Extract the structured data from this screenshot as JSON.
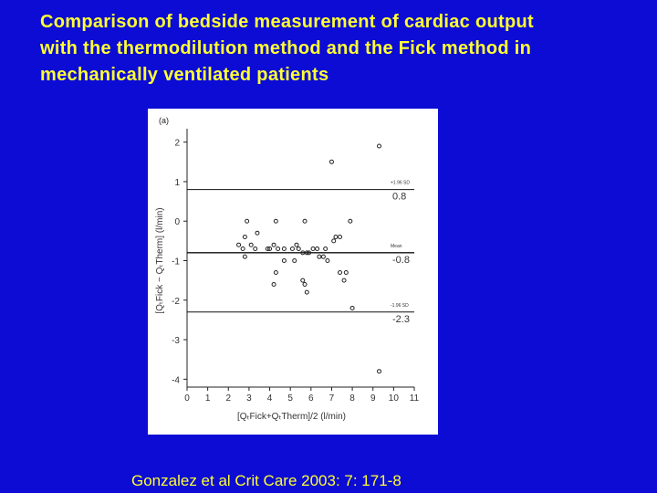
{
  "slide": {
    "title_lines": [
      "Comparison of bedside measurement of cardiac output",
      "with the thermodilution method and the Fick method in",
      "mechanically ventilated patients"
    ],
    "citation": "Gonzalez et al Crit Care 2003: 7: 171-8",
    "colors": {
      "background": "#0c0cd4",
      "text": "#ffff33",
      "panel": "#ffffff"
    }
  },
  "chart_data": {
    "type": "scatter",
    "panel_label": "(a)",
    "xlabel": "[QₜFick+QₜTherm]/2 (l/min)",
    "ylabel": "[QₜFick − QₜTherm] (l/min)",
    "xlim": [
      0,
      11
    ],
    "ylim": [
      -4.2,
      2.2
    ],
    "x_ticks": [
      0,
      1,
      2,
      3,
      4,
      5,
      6,
      7,
      8,
      9,
      10,
      11
    ],
    "y_ticks": [
      2,
      1,
      0,
      -1,
      -2,
      -3,
      -4
    ],
    "grid": false,
    "reference_lines": [
      {
        "label": "+1.96 SD",
        "value_label": "0.8",
        "y": 0.8
      },
      {
        "label": "Mean",
        "value_label": "-0.8",
        "y": -0.8
      },
      {
        "label": "-1.96 SD",
        "value_label": "-2.3",
        "y": -2.3
      }
    ],
    "points": [
      {
        "x": 9.3,
        "y": 1.9
      },
      {
        "x": 7.0,
        "y": 1.5
      },
      {
        "x": 2.9,
        "y": 0.0
      },
      {
        "x": 4.3,
        "y": 0.0
      },
      {
        "x": 5.7,
        "y": 0.0
      },
      {
        "x": 7.9,
        "y": 0.0
      },
      {
        "x": 3.4,
        "y": -0.3
      },
      {
        "x": 2.8,
        "y": -0.4
      },
      {
        "x": 7.2,
        "y": -0.4
      },
      {
        "x": 7.4,
        "y": -0.4
      },
      {
        "x": 7.1,
        "y": -0.5
      },
      {
        "x": 2.5,
        "y": -0.6
      },
      {
        "x": 3.1,
        "y": -0.6
      },
      {
        "x": 3.3,
        "y": -0.7
      },
      {
        "x": 2.7,
        "y": -0.7
      },
      {
        "x": 3.9,
        "y": -0.7
      },
      {
        "x": 4.0,
        "y": -0.7
      },
      {
        "x": 4.2,
        "y": -0.6
      },
      {
        "x": 4.4,
        "y": -0.7
      },
      {
        "x": 4.7,
        "y": -0.7
      },
      {
        "x": 5.1,
        "y": -0.7
      },
      {
        "x": 5.3,
        "y": -0.6
      },
      {
        "x": 5.4,
        "y": -0.7
      },
      {
        "x": 5.6,
        "y": -0.8
      },
      {
        "x": 5.8,
        "y": -0.8
      },
      {
        "x": 5.9,
        "y": -0.8
      },
      {
        "x": 6.1,
        "y": -0.7
      },
      {
        "x": 6.3,
        "y": -0.7
      },
      {
        "x": 6.4,
        "y": -0.9
      },
      {
        "x": 6.6,
        "y": -0.9
      },
      {
        "x": 6.7,
        "y": -0.7
      },
      {
        "x": 2.8,
        "y": -0.9
      },
      {
        "x": 4.7,
        "y": -1.0
      },
      {
        "x": 5.2,
        "y": -1.0
      },
      {
        "x": 6.8,
        "y": -1.0
      },
      {
        "x": 4.3,
        "y": -1.3
      },
      {
        "x": 7.4,
        "y": -1.3
      },
      {
        "x": 7.7,
        "y": -1.3
      },
      {
        "x": 4.2,
        "y": -1.6
      },
      {
        "x": 5.6,
        "y": -1.5
      },
      {
        "x": 5.7,
        "y": -1.6
      },
      {
        "x": 7.6,
        "y": -1.5
      },
      {
        "x": 5.8,
        "y": -1.8
      },
      {
        "x": 8.0,
        "y": -2.2
      },
      {
        "x": 9.3,
        "y": -3.8
      }
    ]
  }
}
